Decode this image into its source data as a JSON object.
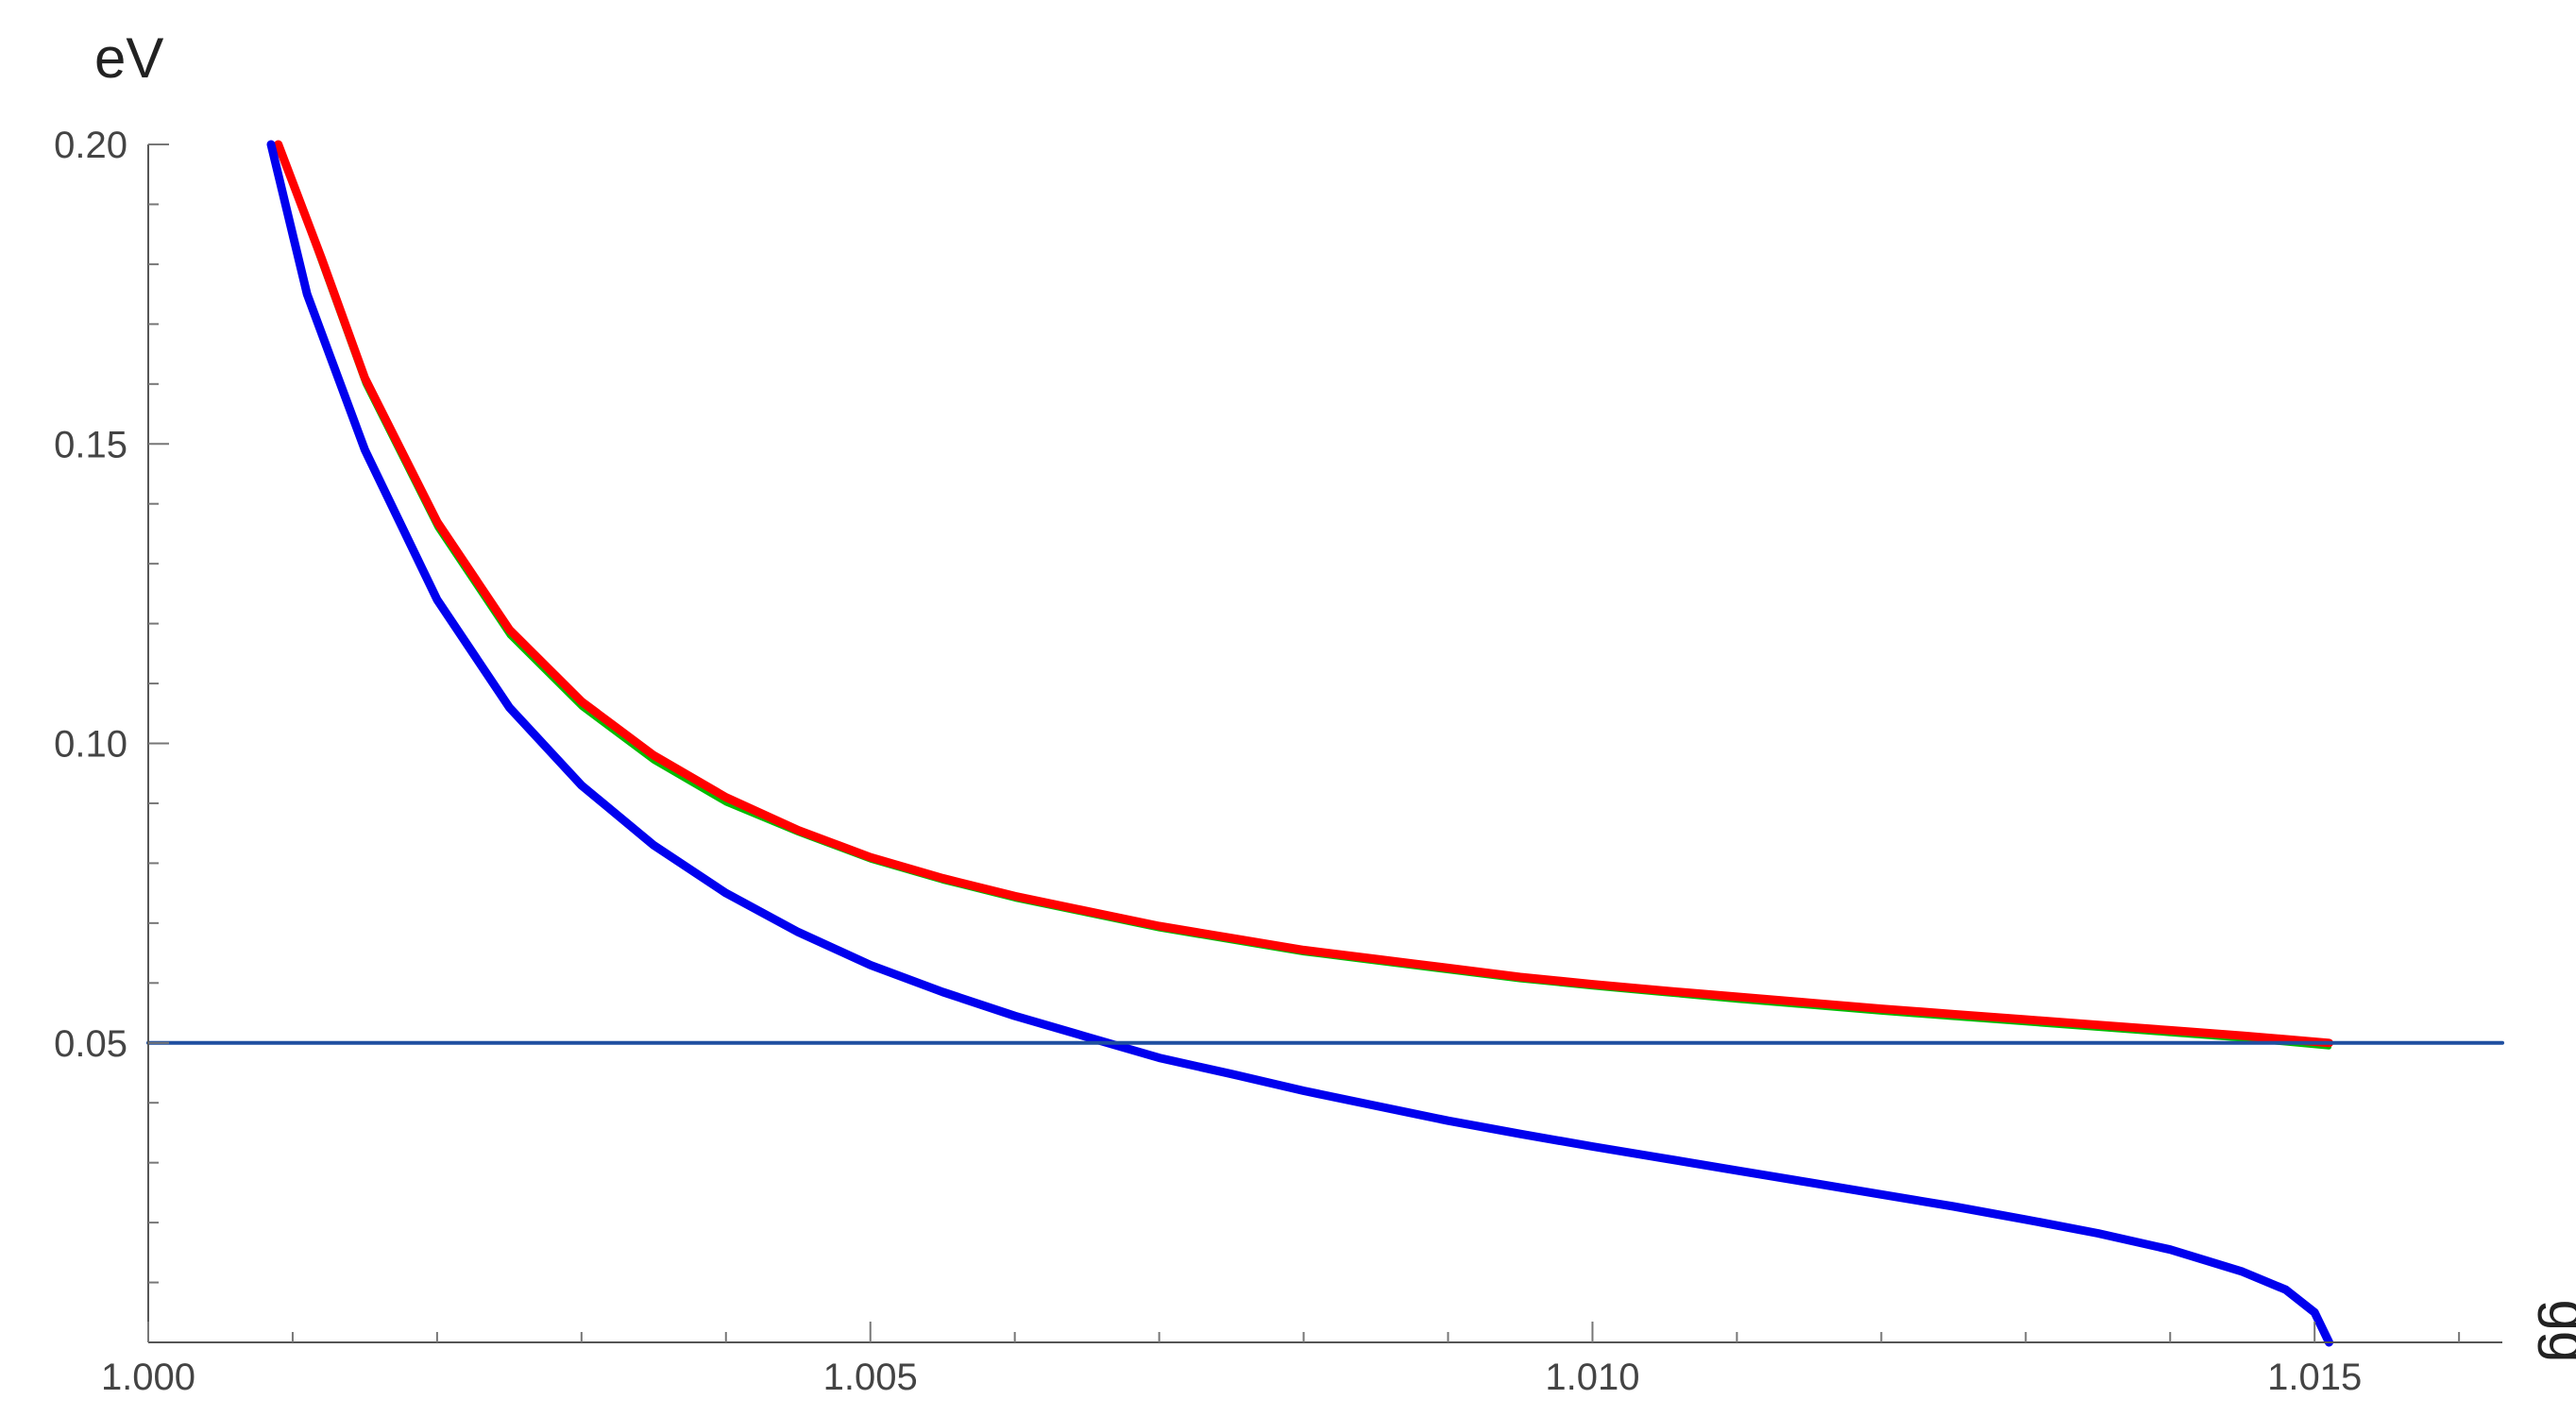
{
  "chart_data": {
    "type": "line",
    "title": "",
    "xlabel": "gg",
    "ylabel": "eV",
    "xlim": [
      1.0,
      1.0163
    ],
    "ylim": [
      0.0,
      0.2
    ],
    "x_ticks": [
      "1.000",
      "1.005",
      "1.010",
      "1.015"
    ],
    "y_ticks": [
      "0.05",
      "0.10",
      "0.15",
      "0.20"
    ],
    "x_minor_step": 0.001,
    "y_minor_step": 0.01,
    "grid": false,
    "legend": "none",
    "series": [
      {
        "color": "#00bb00",
        "x": [
          1.0009,
          1.0012,
          1.0015,
          1.002,
          1.0025,
          1.003,
          1.0035,
          1.004,
          1.0045,
          1.005,
          1.0055,
          1.006,
          1.0065,
          1.007,
          1.0075,
          1.008,
          1.0085,
          1.009,
          1.0095,
          1.01,
          1.0105,
          1.011,
          1.0115,
          1.012,
          1.0125,
          1.013,
          1.0135,
          1.014,
          1.0145,
          1.0151
        ],
        "y": [
          0.2,
          0.18,
          0.16,
          0.136,
          0.118,
          0.106,
          0.097,
          0.09,
          0.085,
          0.0805,
          0.077,
          0.074,
          0.0715,
          0.069,
          0.067,
          0.065,
          0.0635,
          0.062,
          0.0605,
          0.0593,
          0.0582,
          0.0571,
          0.0561,
          0.0551,
          0.0542,
          0.0533,
          0.0524,
          0.0515,
          0.0506,
          0.0493
        ]
      },
      {
        "color": "#ff0000",
        "x": [
          1.0009,
          1.0012,
          1.0015,
          1.002,
          1.0025,
          1.003,
          1.0035,
          1.004,
          1.0045,
          1.005,
          1.0055,
          1.006,
          1.0065,
          1.007,
          1.0075,
          1.008,
          1.0085,
          1.009,
          1.0095,
          1.01,
          1.0105,
          1.011,
          1.0115,
          1.012,
          1.0125,
          1.013,
          1.0135,
          1.014,
          1.0145,
          1.0151
        ],
        "y": [
          0.2,
          0.181,
          0.161,
          0.137,
          0.119,
          0.107,
          0.098,
          0.091,
          0.0855,
          0.081,
          0.0775,
          0.0745,
          0.072,
          0.0695,
          0.0675,
          0.0655,
          0.064,
          0.0625,
          0.061,
          0.0598,
          0.0587,
          0.0577,
          0.0567,
          0.0557,
          0.0548,
          0.0539,
          0.053,
          0.0521,
          0.0512,
          0.05
        ]
      },
      {
        "color": "#0000ee",
        "x": [
          1.00085,
          1.0011,
          1.0015,
          1.002,
          1.0025,
          1.003,
          1.0035,
          1.004,
          1.0045,
          1.005,
          1.0055,
          1.006,
          1.0065,
          1.007,
          1.0075,
          1.008,
          1.0085,
          1.009,
          1.0095,
          1.01,
          1.0105,
          1.011,
          1.0115,
          1.012,
          1.0125,
          1.013,
          1.0135,
          1.014,
          1.0145,
          1.0148,
          1.015,
          1.0151
        ],
        "y": [
          0.2,
          0.175,
          0.149,
          0.124,
          0.106,
          0.093,
          0.083,
          0.075,
          0.0685,
          0.063,
          0.0585,
          0.0545,
          0.051,
          0.0475,
          0.0448,
          0.042,
          0.0395,
          0.037,
          0.0348,
          0.0327,
          0.0307,
          0.0287,
          0.0267,
          0.0247,
          0.0227,
          0.0205,
          0.0182,
          0.0155,
          0.0118,
          0.0088,
          0.005,
          0.0
        ]
      },
      {
        "color": "#1f4fa0",
        "x": [
          1.0,
          1.0163
        ],
        "y": [
          0.05,
          0.05
        ]
      }
    ]
  }
}
